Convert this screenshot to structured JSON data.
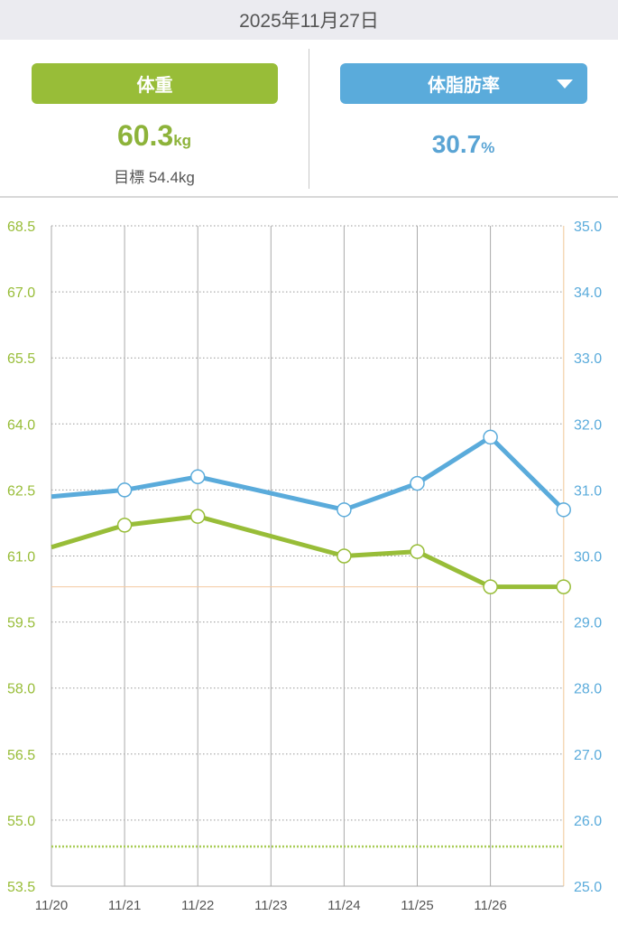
{
  "header": {
    "date": "2025年11月27日"
  },
  "weight": {
    "label": "体重",
    "value": "60.3",
    "unit": "kg",
    "goal_label": "目標 54.4kg"
  },
  "fat": {
    "label": "体脂肪率",
    "value": "30.7",
    "unit": "%",
    "dropdown_icon": "triangle-down-icon"
  },
  "colors": {
    "weight": "#98bd38",
    "fat": "#5aabdb"
  },
  "chart_data": {
    "type": "line",
    "x": [
      "11/20",
      "11/21",
      "11/22",
      "11/23",
      "11/24",
      "11/25",
      "11/26",
      "11/27"
    ],
    "x_ticks": [
      "11/20",
      "11/21",
      "11/22",
      "11/23",
      "11/24",
      "11/25",
      "11/26"
    ],
    "series": [
      {
        "name": "体重",
        "axis": "left",
        "values": [
          61.2,
          61.7,
          61.9,
          null,
          61.0,
          61.1,
          60.3,
          60.3
        ]
      },
      {
        "name": "体脂肪率",
        "axis": "right",
        "values": [
          30.9,
          31.0,
          31.2,
          null,
          30.7,
          31.1,
          31.8,
          30.7
        ]
      }
    ],
    "left_ticks": [
      "68.5",
      "67.0",
      "65.5",
      "64.0",
      "62.5",
      "61.0",
      "59.5",
      "58.0",
      "56.5",
      "55.0",
      "53.5"
    ],
    "right_ticks": [
      "35.0",
      "34.0",
      "33.0",
      "32.0",
      "31.0",
      "30.0",
      "29.0",
      "28.0",
      "27.0",
      "26.0",
      "25.0"
    ],
    "ylim_left": [
      53.5,
      68.5
    ],
    "ylim_right": [
      25,
      35
    ],
    "goal_weight": 54.4,
    "current_weight": 60.3
  }
}
